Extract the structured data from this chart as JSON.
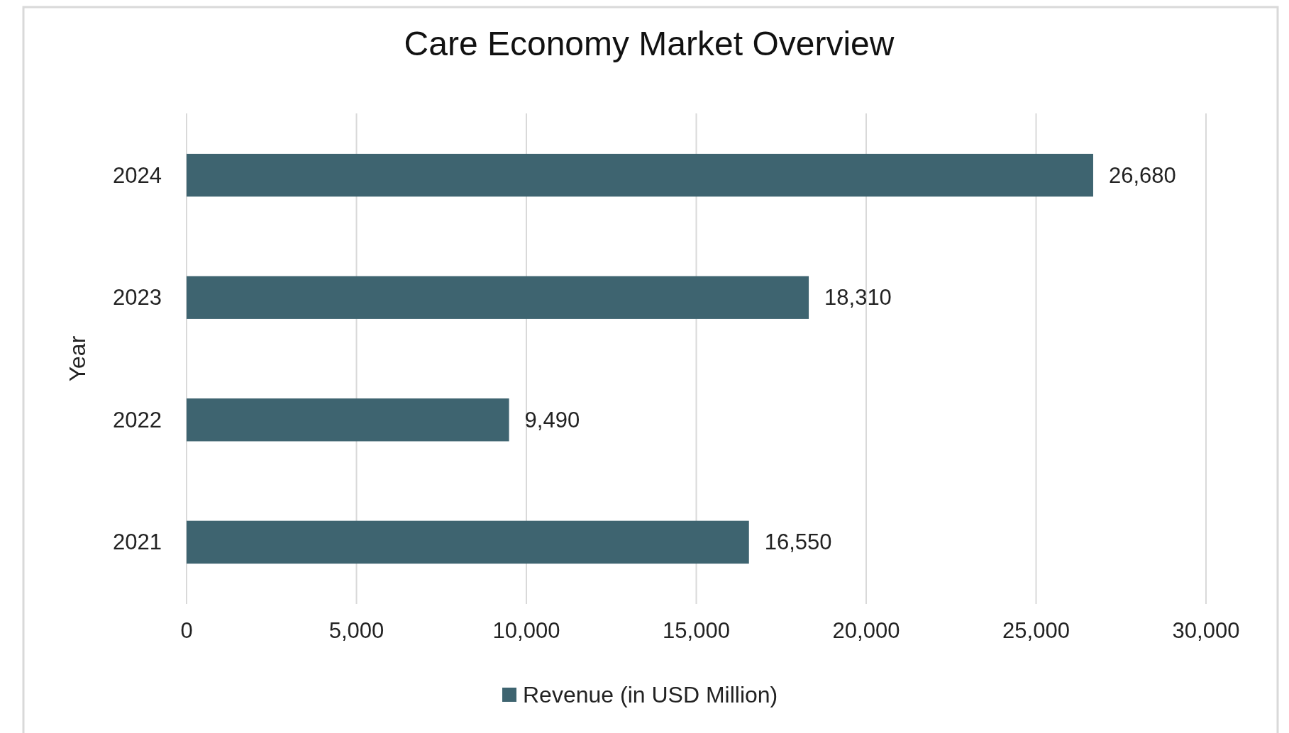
{
  "chart_data": {
    "type": "bar",
    "orientation": "horizontal",
    "title": "Care Economy Market Overview",
    "ylabel": "Year",
    "categories": [
      "2024",
      "2023",
      "2022",
      "2021"
    ],
    "series": [
      {
        "name": "Revenue (in USD Million)",
        "color": "#3e6470",
        "values": [
          26680,
          18310,
          9490,
          16550
        ],
        "value_labels": [
          "26,680",
          "18,310",
          "9,490",
          "16,550"
        ]
      }
    ],
    "xlim": [
      0,
      30000
    ],
    "xticks": [
      0,
      {
        "value": 5000,
        "label": "5,000"
      },
      {
        "value": 10000,
        "label": "10,000"
      },
      {
        "value": 15000,
        "label": "15,000"
      },
      {
        "value": 20000,
        "label": "20,000"
      },
      {
        "value": 25000,
        "label": "25,000"
      },
      {
        "value": 30000,
        "label": "30,000"
      }
    ],
    "grid": "x",
    "legend": "bottom"
  }
}
